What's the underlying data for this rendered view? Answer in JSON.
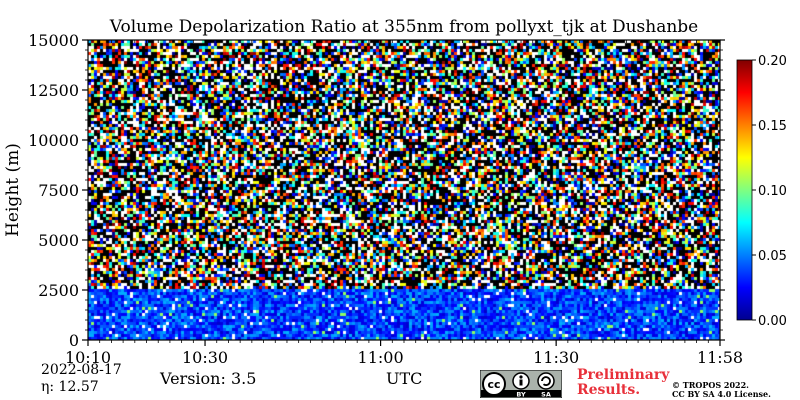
{
  "chart_data": {
    "type": "heatmap",
    "title": "Volume Depolarization Ratio at 355nm from pollyxt_tjk at Dushanbe",
    "xlabel": "UTC",
    "ylabel": "Height (m)",
    "x_range": [
      "10:10",
      "11:58"
    ],
    "x_ticks": [
      "10:10",
      "10:30",
      "11:00",
      "11:30",
      "11:58"
    ],
    "x_tick_minutes": [
      610,
      630,
      660,
      690,
      718
    ],
    "ylim": [
      0,
      15000
    ],
    "y_ticks": [
      0,
      2500,
      5000,
      7500,
      10000,
      12500,
      15000
    ],
    "colorbar": {
      "range": [
        0.0,
        0.2
      ],
      "ticks": [
        "0.00",
        "0.05",
        "0.10",
        "0.15",
        "0.20"
      ],
      "tick_values": [
        0.0,
        0.05,
        0.1,
        0.15,
        0.2
      ],
      "colormap": "jet"
    },
    "layers": [
      {
        "height_range": [
          0,
          2500
        ],
        "description": "low depolarization, mostly 0.02-0.06"
      },
      {
        "height_range": [
          2500,
          15000
        ],
        "description": "noisy signal, values spanning full range"
      }
    ]
  },
  "footer": {
    "date": "2022-08-17",
    "eta": "η:  12.57",
    "version": "Version: 3.5",
    "utc_label": "UTC",
    "preliminary": "Preliminary Results.",
    "copyright_line1": "© TROPOS 2022.",
    "copyright_line2": "CC BY SA 4.0 License.",
    "cc_badge": {
      "cc": "cc",
      "by": "BY",
      "sa": "SA"
    }
  }
}
